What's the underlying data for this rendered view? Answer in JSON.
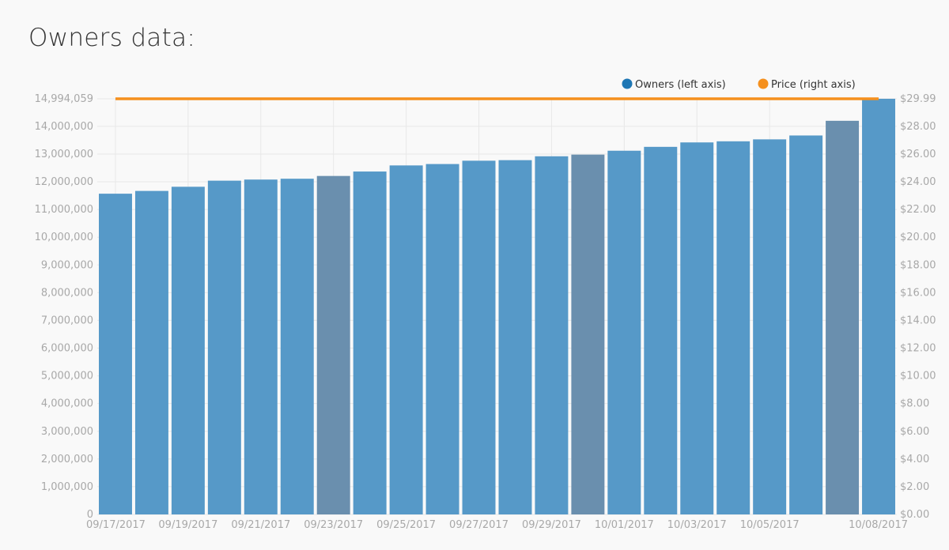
{
  "page": {
    "title": "Owners data:"
  },
  "colors": {
    "owners": "#1f77b4",
    "owners_bar": "#5699c8",
    "owners_bar_weekend": "#6a8fae",
    "price": "#f5901e",
    "grid": "#e8e8e8",
    "tick": "#a8a8a8",
    "background": "#f9f9f9"
  },
  "chart_data": {
    "type": "bar",
    "title": "Owners data:",
    "legend": {
      "position": "top-right",
      "entries": [
        {
          "label": "Owners (left axis)",
          "color": "#1f77b4"
        },
        {
          "label": "Price (right axis)",
          "color": "#f5901e"
        }
      ]
    },
    "categories": [
      "09/17/2017",
      "09/18/2017",
      "09/19/2017",
      "09/20/2017",
      "09/21/2017",
      "09/22/2017",
      "09/23/2017",
      "09/24/2017",
      "09/25/2017",
      "09/26/2017",
      "09/27/2017",
      "09/28/2017",
      "09/29/2017",
      "09/30/2017",
      "10/01/2017",
      "10/02/2017",
      "10/03/2017",
      "10/04/2017",
      "10/05/2017",
      "10/06/2017",
      "10/07/2017",
      "10/08/2017"
    ],
    "x_tick_labels": [
      "09/17/2017",
      "09/19/2017",
      "09/21/2017",
      "09/23/2017",
      "09/25/2017",
      "09/27/2017",
      "09/29/2017",
      "10/01/2017",
      "10/03/2017",
      "10/05/2017",
      "10/08/2017"
    ],
    "highlighted_categories": [
      "09/23/2017",
      "09/30/2017",
      "10/07/2017"
    ],
    "series": [
      {
        "name": "Owners (left axis)",
        "axis": "left",
        "type": "bar",
        "values": [
          11570000,
          11670000,
          11820000,
          12040000,
          12080000,
          12110000,
          12210000,
          12370000,
          12590000,
          12640000,
          12760000,
          12780000,
          12920000,
          12980000,
          13120000,
          13260000,
          13420000,
          13460000,
          13530000,
          13670000,
          14200000,
          14994059
        ]
      },
      {
        "name": "Price (right axis)",
        "axis": "right",
        "type": "line",
        "values": [
          29.99,
          29.99,
          29.99,
          29.99,
          29.99,
          29.99,
          29.99,
          29.99,
          29.99,
          29.99,
          29.99,
          29.99,
          29.99,
          29.99,
          29.99,
          29.99,
          29.99,
          29.99,
          29.99,
          29.99,
          29.99,
          29.99
        ]
      }
    ],
    "left_axis": {
      "ylim": [
        0,
        14994059
      ],
      "ticks": [
        0,
        1000000,
        2000000,
        3000000,
        4000000,
        5000000,
        6000000,
        7000000,
        8000000,
        9000000,
        10000000,
        11000000,
        12000000,
        13000000,
        14000000,
        14994059
      ],
      "tick_labels": [
        "0",
        "1,000,000",
        "2,000,000",
        "3,000,000",
        "4,000,000",
        "5,000,000",
        "6,000,000",
        "7,000,000",
        "8,000,000",
        "9,000,000",
        "10,000,000",
        "11,000,000",
        "12,000,000",
        "13,000,000",
        "14,000,000",
        "14,994,059"
      ]
    },
    "right_axis": {
      "ylim": [
        0,
        29.99
      ],
      "ticks": [
        0,
        2,
        4,
        6,
        8,
        10,
        12,
        14,
        16,
        18,
        20,
        22,
        24,
        26,
        28,
        29.99
      ],
      "tick_labels": [
        "$0.00",
        "$2.00",
        "$4.00",
        "$6.00",
        "$8.00",
        "$10.00",
        "$12.00",
        "$14.00",
        "$16.00",
        "$18.00",
        "$20.00",
        "$22.00",
        "$24.00",
        "$26.00",
        "$28.00",
        "$29.99"
      ]
    },
    "grid": true
  }
}
